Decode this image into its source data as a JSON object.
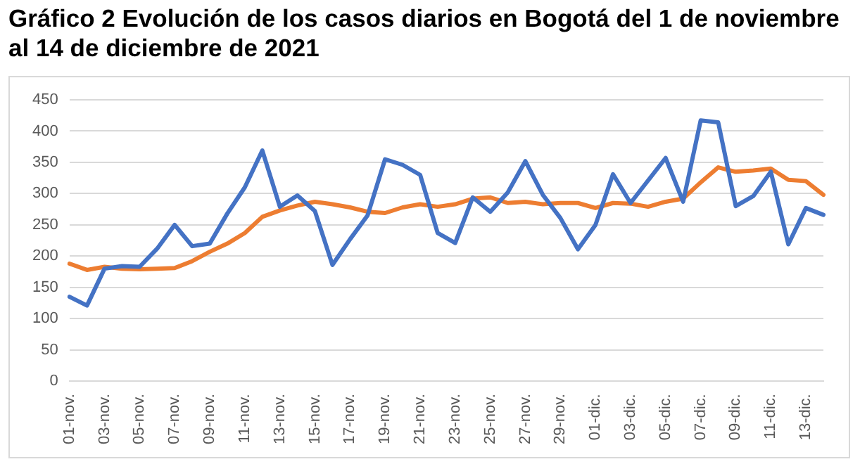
{
  "chart_data": {
    "type": "line",
    "title": "Gráfico 2 Evolución de los casos diarios en Bogotá del 1 de noviembre al 14 de diciembre de 2021",
    "categories": [
      "01-nov.",
      null,
      "03-nov.",
      null,
      "05-nov.",
      null,
      "07-nov.",
      null,
      "09-nov.",
      null,
      "11-nov.",
      null,
      "13-nov.",
      null,
      "15-nov.",
      null,
      "17-nov.",
      null,
      "19-nov.",
      null,
      "21-nov.",
      null,
      "23-nov.",
      null,
      "25-nov.",
      null,
      "27-nov.",
      null,
      "29-nov.",
      null,
      "01-dic.",
      null,
      "03-dic.",
      null,
      "05-dic.",
      null,
      "07-dic.",
      null,
      "09-dic.",
      null,
      "11-dic.",
      null,
      "13-dic.",
      null
    ],
    "series": [
      {
        "color": "#4472c4",
        "values": [
          135,
          121,
          180,
          184,
          183,
          212,
          250,
          216,
          220,
          268,
          310,
          369,
          279,
          297,
          272,
          186,
          227,
          265,
          355,
          346,
          330,
          237,
          221,
          294,
          271,
          302,
          352,
          298,
          261,
          211,
          250,
          331,
          285,
          321,
          357,
          287,
          417,
          414,
          280,
          296,
          335,
          219,
          277,
          266
        ]
      },
      {
        "color": "#ed7d31",
        "values": [
          188,
          178,
          183,
          180,
          179,
          180,
          181,
          192,
          207,
          220,
          237,
          263,
          273,
          281,
          287,
          283,
          278,
          271,
          269,
          278,
          283,
          279,
          283,
          292,
          294,
          285,
          287,
          283,
          285,
          285,
          277,
          285,
          284,
          279,
          287,
          292,
          318,
          342,
          335,
          337,
          340,
          322,
          320,
          298
        ]
      }
    ],
    "ylim": [
      0,
      450
    ],
    "yticks": [
      0,
      50,
      100,
      150,
      200,
      250,
      300,
      350,
      400,
      450
    ],
    "grid": "y",
    "legend": false,
    "marker": "none",
    "line_style": "solid"
  }
}
